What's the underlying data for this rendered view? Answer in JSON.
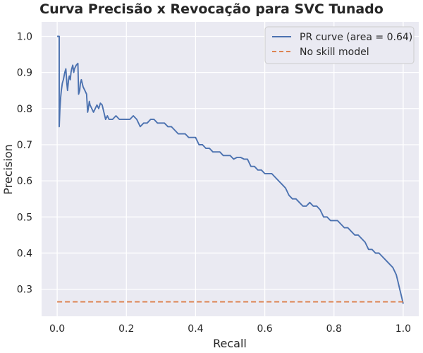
{
  "chart_data": {
    "type": "line",
    "title": "Curva Precisão x Revocação para SVC Tunado",
    "xlabel": "Recall",
    "ylabel": "Precision",
    "xlim": [
      -0.045,
      1.045
    ],
    "ylim": [
      0.225,
      1.04
    ],
    "xticks": [
      0.0,
      0.2,
      0.4,
      0.6,
      0.8,
      1.0
    ],
    "xtick_labels": [
      "0.0",
      "0.2",
      "0.4",
      "0.6",
      "0.8",
      "1.0"
    ],
    "yticks": [
      0.3,
      0.4,
      0.5,
      0.6,
      0.7,
      0.8,
      0.9,
      1.0
    ],
    "ytick_labels": [
      "0.3",
      "0.4",
      "0.5",
      "0.6",
      "0.7",
      "0.8",
      "0.9",
      "1.0"
    ],
    "grid": true,
    "background": "#eaeaf2",
    "legend_position": "top-right",
    "series": [
      {
        "name": "PR curve (area = 0.64)",
        "color": "#4c72b0",
        "style": "solid",
        "x": [
          0.0,
          0.006,
          0.006,
          0.008,
          0.01,
          0.012,
          0.015,
          0.018,
          0.02,
          0.022,
          0.025,
          0.028,
          0.03,
          0.033,
          0.035,
          0.038,
          0.04,
          0.042,
          0.045,
          0.048,
          0.05,
          0.055,
          0.06,
          0.062,
          0.065,
          0.067,
          0.07,
          0.075,
          0.08,
          0.085,
          0.088,
          0.09,
          0.093,
          0.095,
          0.1,
          0.105,
          0.11,
          0.115,
          0.12,
          0.125,
          0.13,
          0.14,
          0.145,
          0.15,
          0.16,
          0.17,
          0.18,
          0.19,
          0.2,
          0.21,
          0.22,
          0.23,
          0.24,
          0.25,
          0.26,
          0.27,
          0.28,
          0.29,
          0.3,
          0.31,
          0.32,
          0.33,
          0.34,
          0.35,
          0.36,
          0.37,
          0.38,
          0.39,
          0.4,
          0.41,
          0.42,
          0.43,
          0.44,
          0.45,
          0.46,
          0.47,
          0.48,
          0.49,
          0.5,
          0.51,
          0.52,
          0.53,
          0.54,
          0.55,
          0.56,
          0.57,
          0.58,
          0.59,
          0.6,
          0.61,
          0.62,
          0.63,
          0.64,
          0.65,
          0.66,
          0.67,
          0.68,
          0.69,
          0.7,
          0.71,
          0.72,
          0.73,
          0.74,
          0.75,
          0.76,
          0.77,
          0.78,
          0.79,
          0.8,
          0.81,
          0.82,
          0.83,
          0.84,
          0.85,
          0.86,
          0.87,
          0.88,
          0.89,
          0.9,
          0.91,
          0.92,
          0.93,
          0.94,
          0.95,
          0.96,
          0.97,
          0.98,
          0.985,
          0.99,
          0.995,
          1.0
        ],
        "y": [
          1.0,
          1.0,
          0.75,
          0.8,
          0.83,
          0.85,
          0.87,
          0.88,
          0.89,
          0.9,
          0.91,
          0.87,
          0.85,
          0.88,
          0.89,
          0.88,
          0.9,
          0.91,
          0.92,
          0.9,
          0.91,
          0.92,
          0.925,
          0.84,
          0.85,
          0.87,
          0.88,
          0.86,
          0.85,
          0.84,
          0.79,
          0.8,
          0.82,
          0.81,
          0.8,
          0.79,
          0.8,
          0.81,
          0.8,
          0.815,
          0.81,
          0.77,
          0.78,
          0.77,
          0.77,
          0.78,
          0.77,
          0.77,
          0.77,
          0.77,
          0.78,
          0.77,
          0.75,
          0.76,
          0.76,
          0.77,
          0.77,
          0.76,
          0.76,
          0.76,
          0.75,
          0.75,
          0.74,
          0.73,
          0.73,
          0.73,
          0.72,
          0.72,
          0.72,
          0.7,
          0.7,
          0.69,
          0.69,
          0.68,
          0.68,
          0.68,
          0.67,
          0.67,
          0.67,
          0.66,
          0.665,
          0.665,
          0.66,
          0.66,
          0.64,
          0.64,
          0.63,
          0.63,
          0.62,
          0.62,
          0.62,
          0.61,
          0.6,
          0.59,
          0.58,
          0.56,
          0.55,
          0.55,
          0.54,
          0.53,
          0.53,
          0.54,
          0.53,
          0.53,
          0.52,
          0.5,
          0.5,
          0.49,
          0.49,
          0.49,
          0.48,
          0.47,
          0.47,
          0.46,
          0.45,
          0.45,
          0.44,
          0.43,
          0.41,
          0.41,
          0.4,
          0.4,
          0.39,
          0.38,
          0.37,
          0.36,
          0.34,
          0.32,
          0.3,
          0.28,
          0.26
        ]
      },
      {
        "name": "No skill model",
        "color": "#dd8452",
        "style": "dashed",
        "x": [
          0.0,
          1.0
        ],
        "y": [
          0.265,
          0.265
        ]
      }
    ]
  }
}
